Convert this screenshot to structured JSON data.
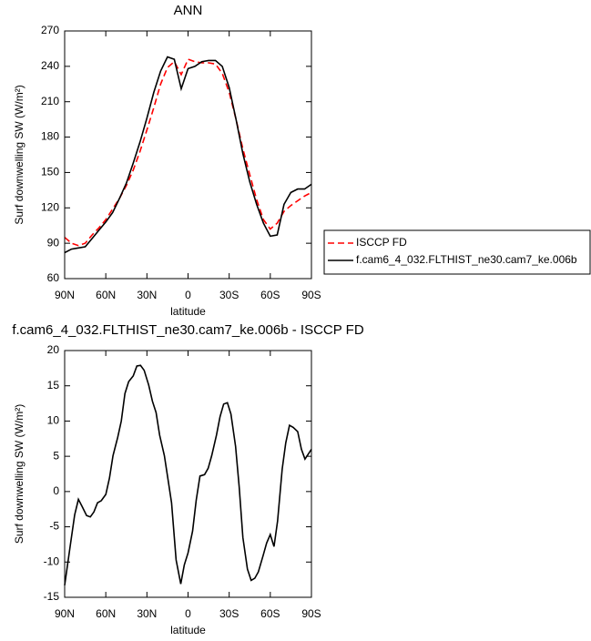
{
  "chart_data": [
    {
      "type": "line",
      "title": "ANN",
      "xlabel": "latitude",
      "ylabel": "Surf downwelling SW (W/m²)",
      "x": [
        90,
        85,
        80,
        75,
        70,
        65,
        60,
        55,
        50,
        45,
        40,
        35,
        30,
        25,
        20,
        15,
        10,
        5,
        0,
        -5,
        -10,
        -15,
        -20,
        -25,
        -30,
        -35,
        -40,
        -45,
        -50,
        -55,
        -60,
        -65,
        -70,
        -75,
        -80,
        -85,
        -90
      ],
      "series": [
        {
          "name": "ISCCP FD",
          "color": "#ff0000",
          "linestyle": "dashed",
          "values": [
            95,
            90,
            88,
            90,
            97,
            103,
            110,
            119,
            128,
            139,
            152,
            168,
            186,
            205,
            225,
            239,
            244,
            233,
            246,
            244,
            243,
            243,
            242,
            234,
            218,
            195,
            170,
            148,
            127,
            110,
            102,
            107,
            117,
            122,
            126,
            130,
            133
          ]
        },
        {
          "name": "f.cam6_4_032.FLTHIST_ne30.cam7_ke.006b",
          "color": "#000000",
          "linestyle": "solid",
          "values": [
            82,
            85,
            86,
            87,
            94,
            101,
            108,
            116,
            128,
            141,
            158,
            176,
            196,
            218,
            236,
            248,
            246,
            221,
            238,
            240,
            244,
            245,
            245,
            240,
            222,
            195,
            166,
            142,
            123,
            107,
            96,
            97,
            123,
            133,
            136,
            136,
            140
          ]
        }
      ],
      "xlim": [
        90,
        -90
      ],
      "xticks": [
        {
          "value": 90,
          "label": "90N"
        },
        {
          "value": 60,
          "label": "60N"
        },
        {
          "value": 30,
          "label": "30N"
        },
        0,
        {
          "value": -30,
          "label": "30S"
        },
        {
          "value": -60,
          "label": "60S"
        },
        {
          "value": -90,
          "label": "90S"
        }
      ],
      "ylim": [
        60,
        270
      ],
      "yticks": [
        60,
        90,
        120,
        150,
        180,
        210,
        240,
        270
      ],
      "legend": "right"
    },
    {
      "type": "line",
      "title": "f.cam6_4_032.FLTHIST_ne30.cam7_ke.006b - ISCCP FD",
      "xlabel": "latitude",
      "ylabel": "Surf downwelling SW (W/m²)",
      "x": [
        90,
        86,
        82.7,
        80,
        77.3,
        74,
        71.3,
        68.7,
        66,
        63.3,
        60,
        57.3,
        54.7,
        51.3,
        48.7,
        46,
        43.3,
        40,
        37.3,
        34.7,
        32,
        28.7,
        26,
        23.3,
        20.7,
        17.3,
        14.7,
        12,
        8.7,
        5.3,
        2.7,
        0,
        -3.3,
        -6,
        -8.7,
        -12,
        -14.7,
        -17.3,
        -20.7,
        -23.3,
        -26,
        -28.7,
        -31.3,
        -34.7,
        -37.3,
        -40,
        -43.3,
        -46,
        -48.7,
        -51.3,
        -54.7,
        -57.3,
        -60,
        -62.7,
        -65.3,
        -68.7,
        -71.3,
        -74,
        -76.7,
        -80,
        -82.7,
        -85.3,
        -90
      ],
      "series": [
        {
          "color": "#000000",
          "linestyle": "solid",
          "values": [
            -13.3,
            -7.8,
            -3.3,
            -1.1,
            -2.1,
            -3.4,
            -3.6,
            -2.9,
            -1.6,
            -1.3,
            -0.4,
            1.9,
            5.1,
            7.7,
            10,
            13.9,
            15.6,
            16.4,
            17.8,
            17.9,
            17.2,
            15.1,
            12.8,
            11.2,
            8,
            5.1,
            1.8,
            -1.6,
            -9.7,
            -13.1,
            -10.4,
            -8.7,
            -5.6,
            -1.2,
            2.2,
            2.4,
            3.3,
            5.1,
            8,
            10.6,
            12.4,
            12.6,
            11,
            6.4,
            0.6,
            -6.5,
            -11,
            -12.6,
            -12.3,
            -11.4,
            -9.1,
            -7.3,
            -6.1,
            -7.8,
            -4.2,
            3.2,
            6.9,
            9.4,
            9.1,
            8.5,
            6,
            4.6,
            6
          ]
        }
      ],
      "xlim": [
        90,
        -90
      ],
      "xticks": [
        {
          "value": 90,
          "label": "90N"
        },
        {
          "value": 60,
          "label": "60N"
        },
        {
          "value": 30,
          "label": "30N"
        },
        0,
        {
          "value": -30,
          "label": "30S"
        },
        {
          "value": -60,
          "label": "60S"
        },
        {
          "value": -90,
          "label": "90S"
        }
      ],
      "ylim": [
        -15,
        20
      ],
      "yticks": [
        -15,
        -10,
        -5,
        0,
        5,
        10,
        15,
        20
      ]
    }
  ]
}
